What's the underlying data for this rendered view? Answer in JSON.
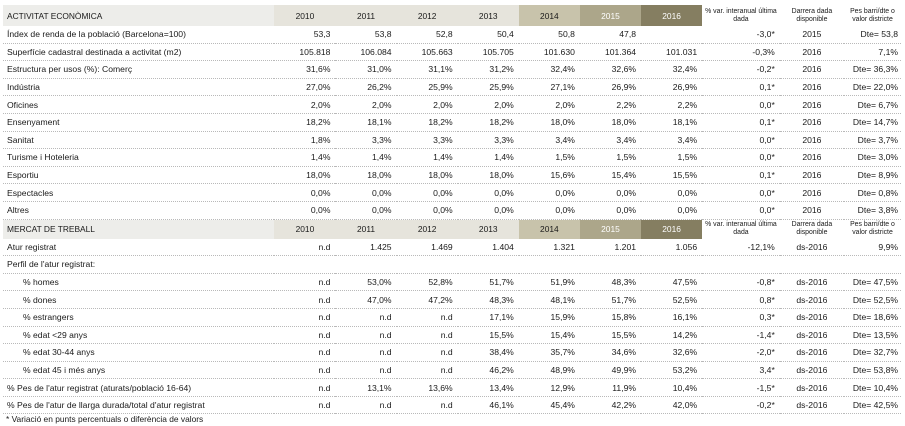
{
  "columns": {
    "years": [
      "2010",
      "2011",
      "2012",
      "2013",
      "2014",
      "2015",
      "2016"
    ],
    "var_label": "% var. interanual última dada",
    "date_label": "Darrera dada disponible",
    "pes_label": "Pes barri/dte o valor districte"
  },
  "sections": [
    {
      "title": "ACTIVITAT ECONÒMICA",
      "rows": [
        {
          "label": "Índex de renda de la població (Barcelona=100)",
          "indent": false,
          "values": [
            "53,3",
            "53,8",
            "52,8",
            "50,4",
            "50,8",
            "47,8",
            ""
          ],
          "var": "-3,0*",
          "date": "2015",
          "pes": "Dte= 53,8"
        },
        {
          "label": "Superfície cadastral destinada a activitat (m2)",
          "indent": false,
          "values": [
            "105.818",
            "106.084",
            "105.663",
            "105.705",
            "101.630",
            "101.364",
            "101.031"
          ],
          "var": "-0,3%",
          "date": "2016",
          "pes": "7,1%"
        },
        {
          "label": "Estructura per usos (%): Comerç",
          "indent": false,
          "values": [
            "31,6%",
            "31,0%",
            "31,1%",
            "31,2%",
            "32,4%",
            "32,6%",
            "32,4%"
          ],
          "var": "-0,2*",
          "date": "2016",
          "pes": "Dte= 36,3%"
        },
        {
          "label": "Indústria",
          "indent": false,
          "values": [
            "27,0%",
            "26,2%",
            "25,9%",
            "25,9%",
            "27,1%",
            "26,9%",
            "26,9%"
          ],
          "var": "0,1*",
          "date": "2016",
          "pes": "Dte= 22,0%"
        },
        {
          "label": "Oficines",
          "indent": false,
          "values": [
            "2,0%",
            "2,0%",
            "2,0%",
            "2,0%",
            "2,0%",
            "2,2%",
            "2,2%"
          ],
          "var": "0,0*",
          "date": "2016",
          "pes": "Dte= 6,7%"
        },
        {
          "label": "Ensenyament",
          "indent": false,
          "values": [
            "18,2%",
            "18,1%",
            "18,2%",
            "18,2%",
            "18,0%",
            "18,0%",
            "18,1%"
          ],
          "var": "0,1*",
          "date": "2016",
          "pes": "Dte= 14,7%"
        },
        {
          "label": "Sanitat",
          "indent": false,
          "values": [
            "1,8%",
            "3,3%",
            "3,3%",
            "3,3%",
            "3,4%",
            "3,4%",
            "3,4%"
          ],
          "var": "0,0*",
          "date": "2016",
          "pes": "Dte= 3,7%"
        },
        {
          "label": "Turisme i  Hoteleria",
          "indent": false,
          "values": [
            "1,4%",
            "1,4%",
            "1,4%",
            "1,4%",
            "1,5%",
            "1,5%",
            "1,5%"
          ],
          "var": "0,0*",
          "date": "2016",
          "pes": "Dte= 3,0%"
        },
        {
          "label": "Esportiu",
          "indent": false,
          "values": [
            "18,0%",
            "18,0%",
            "18,0%",
            "18,0%",
            "15,6%",
            "15,4%",
            "15,5%"
          ],
          "var": "0,1*",
          "date": "2016",
          "pes": "Dte= 8,9%"
        },
        {
          "label": "Espectacles",
          "indent": false,
          "values": [
            "0,0%",
            "0,0%",
            "0,0%",
            "0,0%",
            "0,0%",
            "0,0%",
            "0,0%"
          ],
          "var": "0,0*",
          "date": "2016",
          "pes": "Dte= 0,8%"
        },
        {
          "label": "Altres",
          "indent": false,
          "values": [
            "0,0%",
            "0,0%",
            "0,0%",
            "0,0%",
            "0,0%",
            "0,0%",
            "0,0%"
          ],
          "var": "0,0*",
          "date": "2016",
          "pes": "Dte= 3,8%"
        }
      ]
    },
    {
      "title": "MERCAT DE TREBALL",
      "rows": [
        {
          "label": "Atur registrat",
          "indent": false,
          "values": [
            "n.d",
            "1.425",
            "1.469",
            "1.404",
            "1.321",
            "1.201",
            "1.056"
          ],
          "var": "-12,1%",
          "date": "ds-2016",
          "pes": "9,9%"
        },
        {
          "label": "Perfil de l'atur registrat:",
          "indent": false,
          "values": [
            "",
            "",
            "",
            "",
            "",
            "",
            ""
          ],
          "var": "",
          "date": "",
          "pes": ""
        },
        {
          "label": "% homes",
          "indent": true,
          "values": [
            "n.d",
            "53,0%",
            "52,8%",
            "51,7%",
            "51,9%",
            "48,3%",
            "47,5%"
          ],
          "var": "-0,8*",
          "date": "ds-2016",
          "pes": "Dte= 47,5%"
        },
        {
          "label": "% dones",
          "indent": true,
          "values": [
            "n.d",
            "47,0%",
            "47,2%",
            "48,3%",
            "48,1%",
            "51,7%",
            "52,5%"
          ],
          "var": "0,8*",
          "date": "ds-2016",
          "pes": "Dte= 52,5%"
        },
        {
          "label": "% estrangers",
          "indent": true,
          "values": [
            "n.d",
            "n.d",
            "n.d",
            "17,1%",
            "15,9%",
            "15,8%",
            "16,1%"
          ],
          "var": "0,3*",
          "date": "ds-2016",
          "pes": "Dte= 18,6%"
        },
        {
          "label": "% edat <29 anys",
          "indent": true,
          "values": [
            "n.d",
            "n.d",
            "n.d",
            "15,5%",
            "15,4%",
            "15,5%",
            "14,2%"
          ],
          "var": "-1,4*",
          "date": "ds-2016",
          "pes": "Dte= 13,5%"
        },
        {
          "label": "% edat 30-44 anys",
          "indent": true,
          "values": [
            "n.d",
            "n.d",
            "n.d",
            "38,4%",
            "35,7%",
            "34,6%",
            "32,6%"
          ],
          "var": "-2,0*",
          "date": "ds-2016",
          "pes": "Dte= 32,7%"
        },
        {
          "label": "% edat 45 i més anys",
          "indent": true,
          "values": [
            "n.d",
            "n.d",
            "n.d",
            "46,2%",
            "48,9%",
            "49,9%",
            "53,2%"
          ],
          "var": "3,4*",
          "date": "ds-2016",
          "pes": "Dte= 53,8%"
        },
        {
          "label": "% Pes de l'atur registrat (aturats/població 16-64)",
          "indent": false,
          "values": [
            "n.d",
            "13,1%",
            "13,6%",
            "13,4%",
            "12,9%",
            "11,9%",
            "10,4%"
          ],
          "var": "-1,5*",
          "date": "ds-2016",
          "pes": "Dte= 10,4%"
        },
        {
          "label": "% Pes de l'atur de llarga durada/total d'atur registrat",
          "indent": false,
          "values": [
            "n.d",
            "n.d",
            "n.d",
            "46,1%",
            "45,4%",
            "42,2%",
            "42,0%"
          ],
          "var": "-0,2*",
          "date": "ds-2016",
          "pes": "Dte= 42,5%"
        }
      ]
    }
  ],
  "footnote": "* Variació en punts percentuals o diferència de valors"
}
